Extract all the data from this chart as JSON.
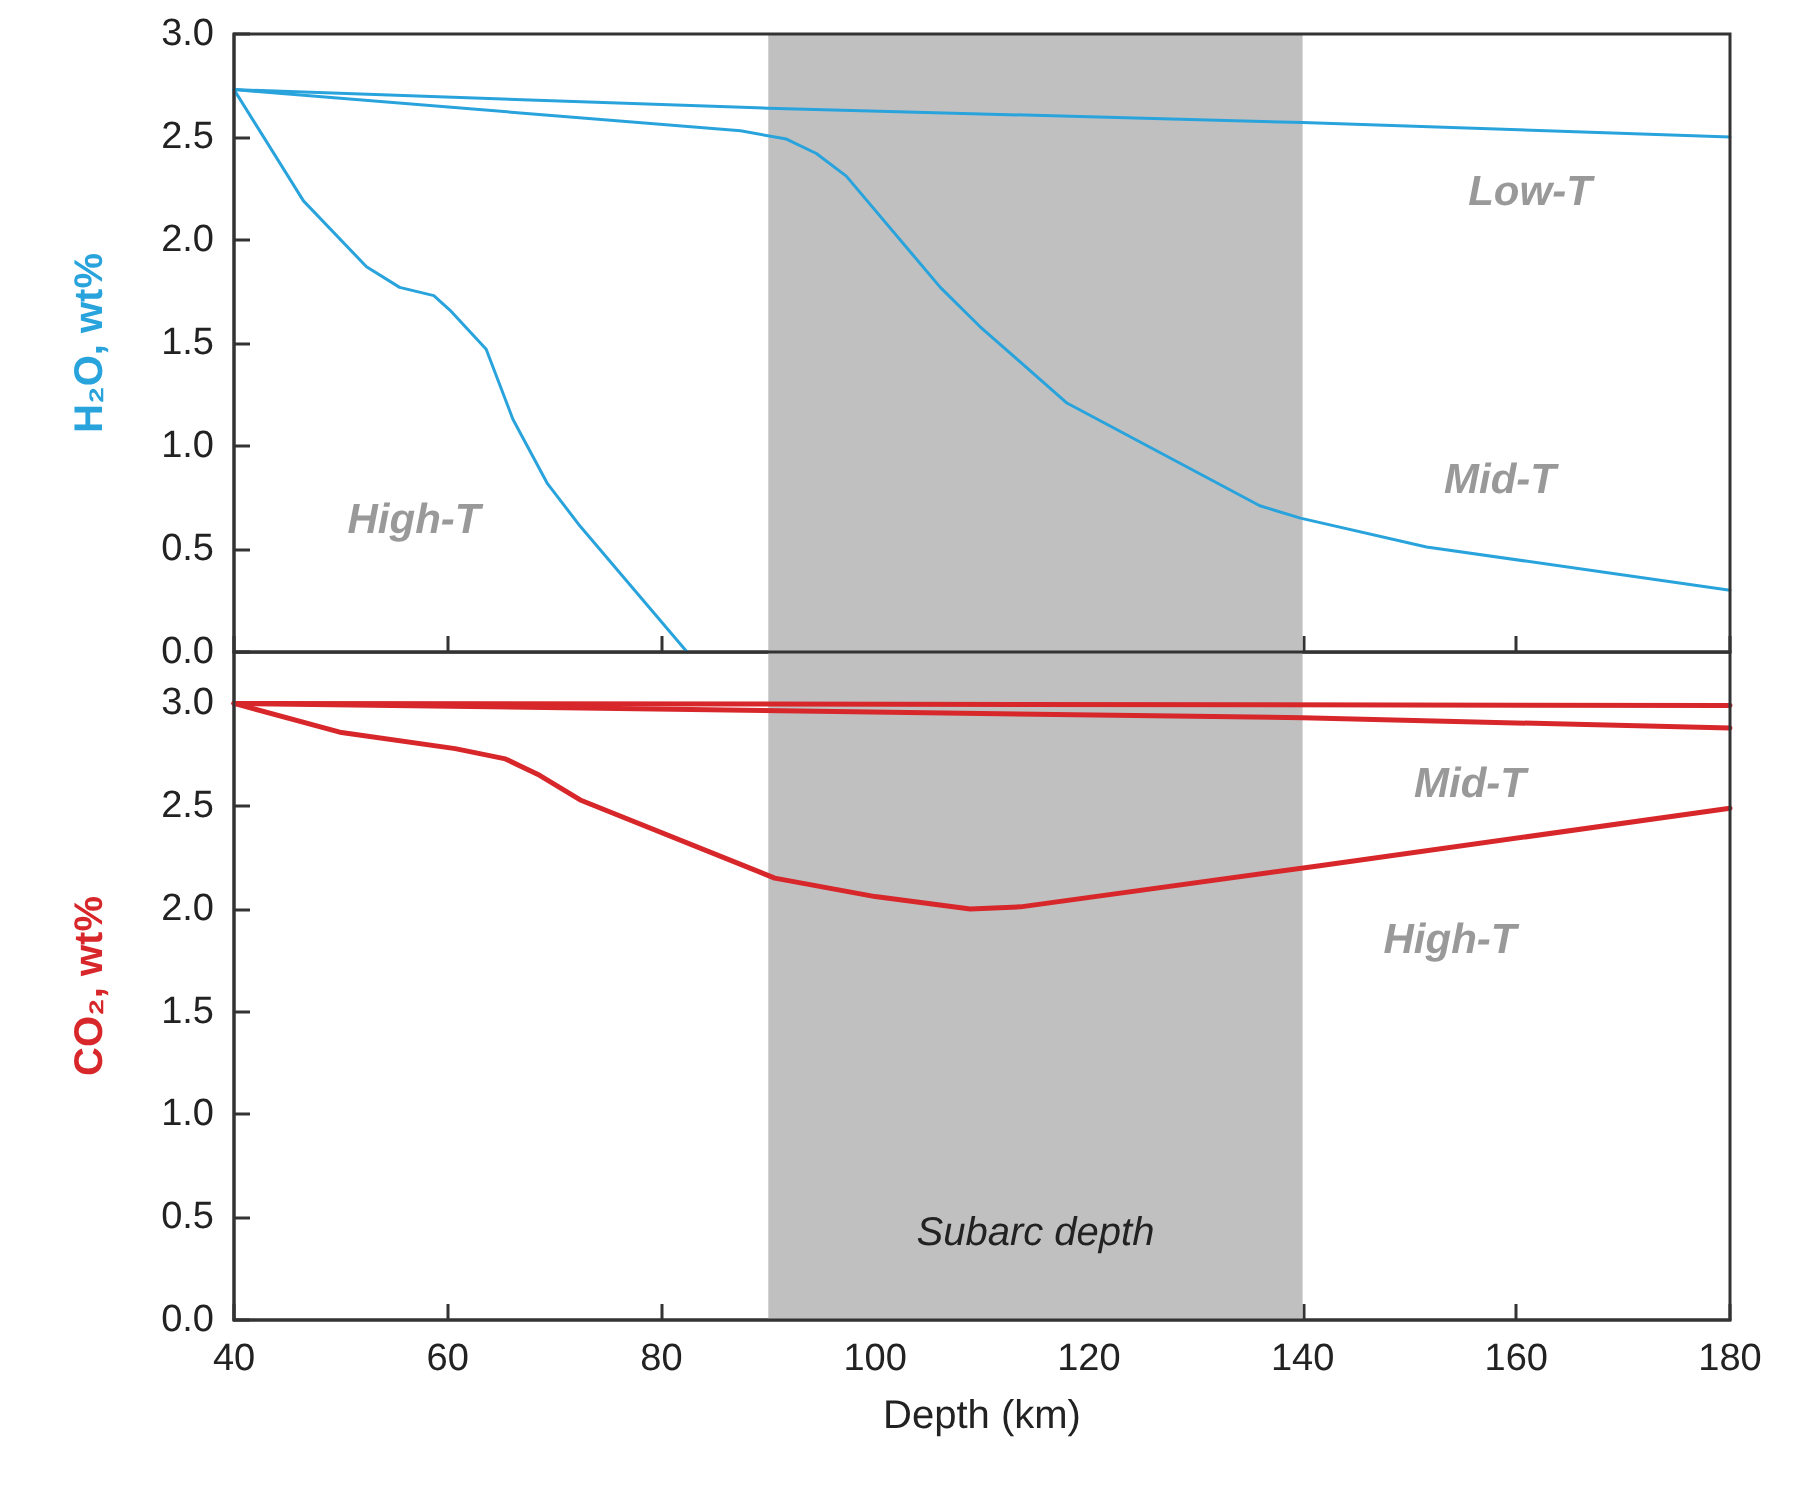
{
  "chart_data": [
    {
      "type": "line",
      "ylabel": "H₂O, wt%",
      "xlim": [
        40,
        180
      ],
      "xticks": [
        40,
        60,
        80,
        100,
        120,
        140,
        160,
        180
      ],
      "ylim": [
        0,
        3
      ],
      "yticks": [
        {
          "value": 0,
          "label": "0.0"
        },
        0.5,
        {
          "value": 1,
          "label": "1.0"
        },
        1.5,
        {
          "value": 2,
          "label": "2.0"
        },
        2.5,
        {
          "value": 3,
          "label": "3.0"
        }
      ],
      "tick_labels": "y",
      "marker": "none",
      "line_style": "solid",
      "bands": [
        {
          "axis": "x",
          "from": 90,
          "to": 140,
          "color": "#c0c0c0"
        }
      ],
      "series": [
        {
          "name": "Low-T",
          "color": "#29a3dc",
          "x": [
            40,
            90,
            140,
            180
          ],
          "values": [
            2.73,
            2.64,
            2.57,
            2.5
          ]
        },
        {
          "name": "Mid-T",
          "color": "#29a3dc",
          "x": [
            40,
            87.4,
            91.7,
            94.5,
            97.3,
            106.1,
            109.8,
            117.9,
            136,
            139.8,
            151.6,
            180
          ],
          "values": [
            2.73,
            2.53,
            2.49,
            2.42,
            2.31,
            1.77,
            1.58,
            1.21,
            0.71,
            0.65,
            0.51,
            0.3
          ]
        },
        {
          "name": "High-T",
          "color": "#29a3dc",
          "x": [
            40,
            46.5,
            52.4,
            55.5,
            58.7,
            60.2,
            63.6,
            66.1,
            69.3,
            72.4,
            82.4
          ],
          "values": [
            2.73,
            2.19,
            1.87,
            1.77,
            1.73,
            1.66,
            1.47,
            1.13,
            0.82,
            0.61,
            0
          ]
        }
      ]
    },
    {
      "type": "line",
      "xlabel": "Depth (km)",
      "ylabel": "CO₂, wt%",
      "xlim": [
        40,
        180
      ],
      "xticks": [
        40,
        60,
        80,
        100,
        120,
        140,
        160,
        180
      ],
      "ylim": [
        0,
        3.25
      ],
      "yticks": [
        {
          "value": 0,
          "label": "0.0"
        },
        0.5,
        {
          "value": 1,
          "label": "1.0"
        },
        1.5,
        {
          "value": 2,
          "label": "2.0"
        },
        2.5,
        {
          "value": 3,
          "label": "3.0"
        }
      ],
      "marker": "none",
      "line_style": "solid",
      "bands": [
        {
          "axis": "x",
          "from": 90,
          "to": 140,
          "color": "#c0c0c0",
          "label": "Subarc depth"
        }
      ],
      "series": [
        {
          "color": "#d7272b",
          "x": [
            40,
            180
          ],
          "values": [
            3.0,
            2.99
          ]
        },
        {
          "name": "Mid-T",
          "color": "#d7272b",
          "x": [
            40,
            140,
            180
          ],
          "values": [
            3.0,
            2.93,
            2.88
          ]
        },
        {
          "name": "High-T",
          "color": "#d7272b",
          "x": [
            40,
            49.9,
            60.7,
            65.4,
            68.6,
            72.4,
            90.6,
            100,
            108.9,
            113.6,
            141.6,
            180
          ],
          "values": [
            3.0,
            2.86,
            2.78,
            2.73,
            2.65,
            2.53,
            2.15,
            2.06,
            2.0,
            2.01,
            2.21,
            2.49
          ]
        }
      ]
    }
  ]
}
